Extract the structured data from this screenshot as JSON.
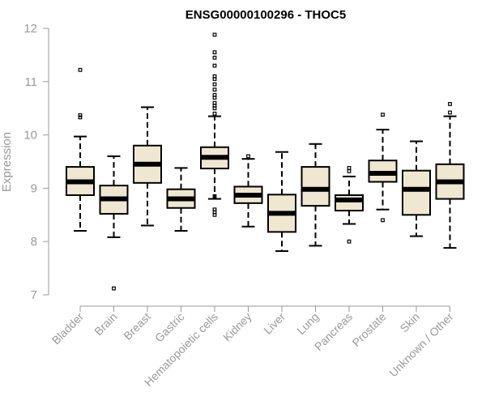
{
  "chart_data": {
    "type": "boxplot",
    "title": "ENSG00000100296 - THOC5",
    "xlabel": "",
    "ylabel": "Expression",
    "ylim": [
      7,
      12
    ],
    "yticks": [
      7,
      8,
      9,
      10,
      11,
      12
    ],
    "grid": false,
    "colors": {
      "box_fill": "#efe7cf",
      "stroke": "#000000",
      "axis": "#9a9a9a"
    },
    "categories": [
      "Bladder",
      "Brain",
      "Breast",
      "Gastric",
      "Hematopoietic cells",
      "Kidney",
      "Liver",
      "Lung",
      "Pancreas",
      "Prostate",
      "Skin",
      "Unknown / Other"
    ],
    "boxes": [
      {
        "label": "Bladder",
        "whisker_low": 8.2,
        "q1": 8.87,
        "median": 9.12,
        "q3": 9.4,
        "whisker_high": 9.97,
        "outliers": [
          10.33,
          10.37,
          11.22
        ]
      },
      {
        "label": "Brain",
        "whisker_low": 8.08,
        "q1": 8.52,
        "median": 8.8,
        "q3": 9.05,
        "whisker_high": 9.6,
        "outliers": [
          7.12
        ]
      },
      {
        "label": "Breast",
        "whisker_low": 8.3,
        "q1": 9.1,
        "median": 9.45,
        "q3": 9.8,
        "whisker_high": 10.52,
        "outliers": []
      },
      {
        "label": "Gastric",
        "whisker_low": 8.2,
        "q1": 8.63,
        "median": 8.8,
        "q3": 8.98,
        "whisker_high": 9.38,
        "outliers": []
      },
      {
        "label": "Hematopoietic cells",
        "whisker_low": 8.8,
        "q1": 9.37,
        "median": 9.58,
        "q3": 9.77,
        "whisker_high": 10.35,
        "outliers": [
          8.5,
          8.55,
          8.6,
          8.85,
          10.4,
          10.5,
          10.55,
          10.6,
          10.7,
          10.75,
          10.85,
          10.95,
          11.05,
          11.1,
          11.3,
          11.45,
          11.55,
          11.88
        ]
      },
      {
        "label": "Kidney",
        "whisker_low": 8.28,
        "q1": 8.72,
        "median": 8.87,
        "q3": 9.03,
        "whisker_high": 9.55,
        "outliers": [
          9.6
        ]
      },
      {
        "label": "Liver",
        "whisker_low": 7.82,
        "q1": 8.18,
        "median": 8.53,
        "q3": 8.88,
        "whisker_high": 9.68,
        "outliers": []
      },
      {
        "label": "Lung",
        "whisker_low": 7.92,
        "q1": 8.67,
        "median": 8.98,
        "q3": 9.4,
        "whisker_high": 9.83,
        "outliers": []
      },
      {
        "label": "Pancreas",
        "whisker_low": 8.33,
        "q1": 8.58,
        "median": 8.78,
        "q3": 8.87,
        "whisker_high": 9.22,
        "outliers": [
          8.0,
          9.32,
          9.38
        ]
      },
      {
        "label": "Prostate",
        "whisker_low": 8.6,
        "q1": 9.12,
        "median": 9.28,
        "q3": 9.52,
        "whisker_high": 10.1,
        "outliers": [
          8.4,
          10.38
        ]
      },
      {
        "label": "Skin",
        "whisker_low": 8.1,
        "q1": 8.5,
        "median": 8.98,
        "q3": 9.33,
        "whisker_high": 9.88,
        "outliers": []
      },
      {
        "label": "Unknown / Other",
        "whisker_low": 7.88,
        "q1": 8.8,
        "median": 9.12,
        "q3": 9.45,
        "whisker_high": 10.35,
        "outliers": [
          10.42,
          10.58
        ]
      }
    ]
  }
}
